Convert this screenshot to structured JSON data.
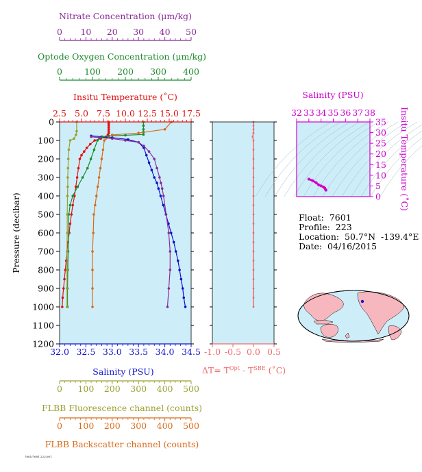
{
  "colors": {
    "nitrate": "#8b2a9a",
    "oxygen": "#1a8a2a",
    "temperature": "#e01010",
    "salinity": "#1010d0",
    "fluorescence": "#9aa030",
    "backscatter": "#d86a1a",
    "delta_t": "#f06a6a",
    "ts_axis": "#d000d0",
    "panel_bg": "#cdeef8"
  },
  "float_info": {
    "float": "Float:  7601",
    "profile": "Profile:  223",
    "location": "Location:  50.7°N  -139.4°E",
    "date": "Date:  04/16/2015"
  },
  "footer_text": "7601/7601.223.001",
  "chart_data": [
    {
      "type": "line",
      "panel": "profile",
      "ylabel": "Pressure (decibar)",
      "ylim": [
        1200,
        0
      ],
      "yticks": [
        0,
        100,
        200,
        300,
        400,
        500,
        600,
        700,
        800,
        900,
        1000,
        1100,
        1200
      ],
      "axes": {
        "nitrate": {
          "label": "Nitrate Concentration (μm/kg)",
          "range": [
            0,
            50
          ],
          "ticks": [
            0,
            10,
            20,
            30,
            40,
            50
          ]
        },
        "oxygen": {
          "label": "Optode Oxygen Concentration (μm/kg)",
          "range": [
            0,
            400
          ],
          "ticks": [
            0,
            100,
            200,
            300,
            400
          ]
        },
        "temperature": {
          "label": "Insitu Temperature (˚C)",
          "range": [
            2.5,
            17.5
          ],
          "ticks": [
            "2.5",
            "5.0",
            "7.5",
            "10.0",
            "12.5",
            "15.0",
            "17.5"
          ]
        },
        "salinity": {
          "label": "Salinity (PSU)",
          "range": [
            32.0,
            34.5
          ],
          "ticks": [
            "32.0",
            "32.5",
            "33.0",
            "33.5",
            "34.0",
            "34.5"
          ]
        },
        "fluorescence": {
          "label": "FLBB Fluorescence channel (counts)",
          "range": [
            0,
            500
          ],
          "ticks": [
            0,
            100,
            200,
            300,
            400,
            500
          ]
        },
        "backscatter": {
          "label": "FLBB Backscatter channel (counts)",
          "range": [
            0,
            500
          ],
          "ticks": [
            0,
            100,
            200,
            300,
            400,
            500
          ]
        }
      },
      "series": [
        {
          "name": "Insitu Temperature",
          "axis": "temperature",
          "values": [
            [
              8.1,
              0
            ],
            [
              8.1,
              10
            ],
            [
              8.1,
              20
            ],
            [
              8.1,
              30
            ],
            [
              8.1,
              40
            ],
            [
              8.1,
              50
            ],
            [
              8.1,
              60
            ],
            [
              8.0,
              70
            ],
            [
              7.8,
              80
            ],
            [
              7.2,
              90
            ],
            [
              6.5,
              100
            ],
            [
              6.0,
              120
            ],
            [
              5.6,
              140
            ],
            [
              5.3,
              160
            ],
            [
              5.0,
              180
            ],
            [
              4.8,
              200
            ],
            [
              4.65,
              250
            ],
            [
              4.5,
              300
            ],
            [
              4.35,
              350
            ],
            [
              4.2,
              400
            ],
            [
              4.0,
              450
            ],
            [
              3.85,
              500
            ],
            [
              3.7,
              550
            ],
            [
              3.6,
              600
            ],
            [
              3.45,
              650
            ],
            [
              3.35,
              700
            ],
            [
              3.25,
              750
            ],
            [
              3.15,
              800
            ],
            [
              3.05,
              850
            ],
            [
              2.95,
              900
            ],
            [
              2.85,
              950
            ],
            [
              2.8,
              1000
            ]
          ]
        },
        {
          "name": "Salinity",
          "axis": "salinity",
          "values": [
            [
              32.6,
              75
            ],
            [
              32.8,
              80
            ],
            [
              33.0,
              85
            ],
            [
              33.3,
              95
            ],
            [
              33.5,
              110
            ],
            [
              33.6,
              140
            ],
            [
              33.65,
              180
            ],
            [
              33.7,
              220
            ],
            [
              33.75,
              260
            ],
            [
              33.8,
              300
            ],
            [
              33.85,
              330
            ],
            [
              33.88,
              360
            ],
            [
              33.92,
              400
            ],
            [
              33.97,
              450
            ],
            [
              34.02,
              500
            ],
            [
              34.07,
              550
            ],
            [
              34.12,
              600
            ],
            [
              34.17,
              650
            ],
            [
              34.21,
              700
            ],
            [
              34.25,
              750
            ],
            [
              34.28,
              800
            ],
            [
              34.31,
              850
            ],
            [
              34.34,
              900
            ],
            [
              34.36,
              950
            ],
            [
              34.39,
              1000
            ]
          ]
        },
        {
          "name": "Nitrate Concentration",
          "axis": "nitrate",
          "values": [
            [
              12,
              80
            ],
            [
              15,
              85
            ],
            [
              20,
              90
            ],
            [
              25,
              100
            ],
            [
              30,
              110
            ],
            [
              32,
              130
            ],
            [
              34,
              160
            ],
            [
              36,
              200
            ],
            [
              37,
              250
            ],
            [
              38,
              300
            ],
            [
              38.5,
              330
            ],
            [
              39,
              360
            ],
            [
              39.5,
              400
            ],
            [
              40.5,
              500
            ],
            [
              41.5,
              600
            ],
            [
              42,
              700
            ],
            [
              42,
              800
            ],
            [
              41.5,
              900
            ],
            [
              41,
              1000
            ]
          ]
        },
        {
          "name": "Optode Oxygen Concentration",
          "axis": "oxygen",
          "values": [
            [
              255,
              0
            ],
            [
              255,
              20
            ],
            [
              255,
              40
            ],
            [
              255,
              55
            ],
            [
              255,
              68
            ],
            [
              200,
              72
            ],
            [
              150,
              76
            ],
            [
              130,
              80
            ],
            [
              115,
              100
            ],
            [
              105,
              150
            ],
            [
              95,
              200
            ],
            [
              85,
              250
            ],
            [
              70,
              300
            ],
            [
              55,
              350
            ],
            [
              40,
              400
            ],
            [
              32,
              450
            ],
            [
              28,
              500
            ],
            [
              27,
              600
            ],
            [
              26,
              700
            ],
            [
              25,
              800
            ],
            [
              24,
              900
            ],
            [
              24,
              1000
            ]
          ]
        },
        {
          "name": "FLBB Fluorescence",
          "axis": "fluorescence",
          "values": [
            [
              65,
              0
            ],
            [
              65,
              50
            ],
            [
              62,
              70
            ],
            [
              55,
              90
            ],
            [
              40,
              100
            ],
            [
              35,
              150
            ],
            [
              33,
              200
            ],
            [
              32,
              250
            ],
            [
              31,
              300
            ],
            [
              31,
              350
            ],
            [
              30,
              400
            ],
            [
              29,
              500
            ],
            [
              29,
              600
            ],
            [
              28,
              700
            ],
            [
              28,
              800
            ],
            [
              28,
              900
            ],
            [
              28,
              1000
            ]
          ]
        },
        {
          "name": "FLBB Backscatter",
          "axis": "backscatter",
          "values": [
            [
              425,
              0
            ],
            [
              400,
              40
            ],
            [
              300,
              60
            ],
            [
              200,
              70
            ],
            [
              170,
              100
            ],
            [
              165,
              150
            ],
            [
              160,
              200
            ],
            [
              155,
              250
            ],
            [
              150,
              300
            ],
            [
              145,
              350
            ],
            [
              140,
              400
            ],
            [
              135,
              450
            ],
            [
              130,
              500
            ],
            [
              128,
              600
            ],
            [
              125,
              700
            ],
            [
              125,
              800
            ],
            [
              125,
              900
            ],
            [
              125,
              1000
            ]
          ]
        }
      ]
    },
    {
      "type": "line",
      "panel": "delta_t",
      "xlabel": "ΔT= T",
      "xlabel_sup1": "Opt",
      "xlabel_mid": " - T",
      "xlabel_sup2": "SBE",
      "xlabel_unit": " (˚C)",
      "xlim": [
        -1.0,
        0.5
      ],
      "xticks": [
        "-1.0",
        "-0.5",
        "0.0",
        "0.5"
      ],
      "series": [
        {
          "name": "ΔT",
          "values": [
            [
              0.0,
              0
            ],
            [
              0.0,
              20
            ],
            [
              0.0,
              40
            ],
            [
              0.0,
              60
            ],
            [
              -0.02,
              80
            ],
            [
              0.0,
              100
            ],
            [
              0.0,
              150
            ],
            [
              0.0,
              200
            ],
            [
              0.0,
              250
            ],
            [
              0.0,
              300
            ],
            [
              0.0,
              350
            ],
            [
              0.0,
              400
            ],
            [
              0.0,
              450
            ],
            [
              0.0,
              500
            ],
            [
              0.0,
              550
            ],
            [
              0.0,
              600
            ],
            [
              0.0,
              650
            ],
            [
              0.0,
              700
            ],
            [
              0.0,
              750
            ],
            [
              0.0,
              800
            ],
            [
              0.0,
              850
            ],
            [
              0.0,
              900
            ],
            [
              0.0,
              950
            ],
            [
              0.0,
              1000
            ]
          ]
        }
      ]
    },
    {
      "type": "scatter",
      "panel": "ts",
      "title": "Salinity (PSU)",
      "ylabel": "Insitu Temperature (˚C)",
      "xlim": [
        32,
        38
      ],
      "ylim": [
        0,
        35
      ],
      "xticks": [
        32,
        33,
        34,
        35,
        36,
        37,
        38
      ],
      "yticks": [
        0,
        5,
        10,
        15,
        20,
        25,
        30,
        35
      ],
      "series": [
        {
          "name": "T-S",
          "values": [
            [
              33.0,
              8.2
            ],
            [
              33.3,
              7.5
            ],
            [
              33.6,
              6.5
            ],
            [
              33.8,
              5.5
            ],
            [
              34.0,
              5.0
            ],
            [
              34.2,
              4.5
            ],
            [
              34.3,
              4.0
            ],
            [
              34.35,
              3.4
            ],
            [
              34.4,
              3.0
            ]
          ]
        }
      ]
    }
  ]
}
